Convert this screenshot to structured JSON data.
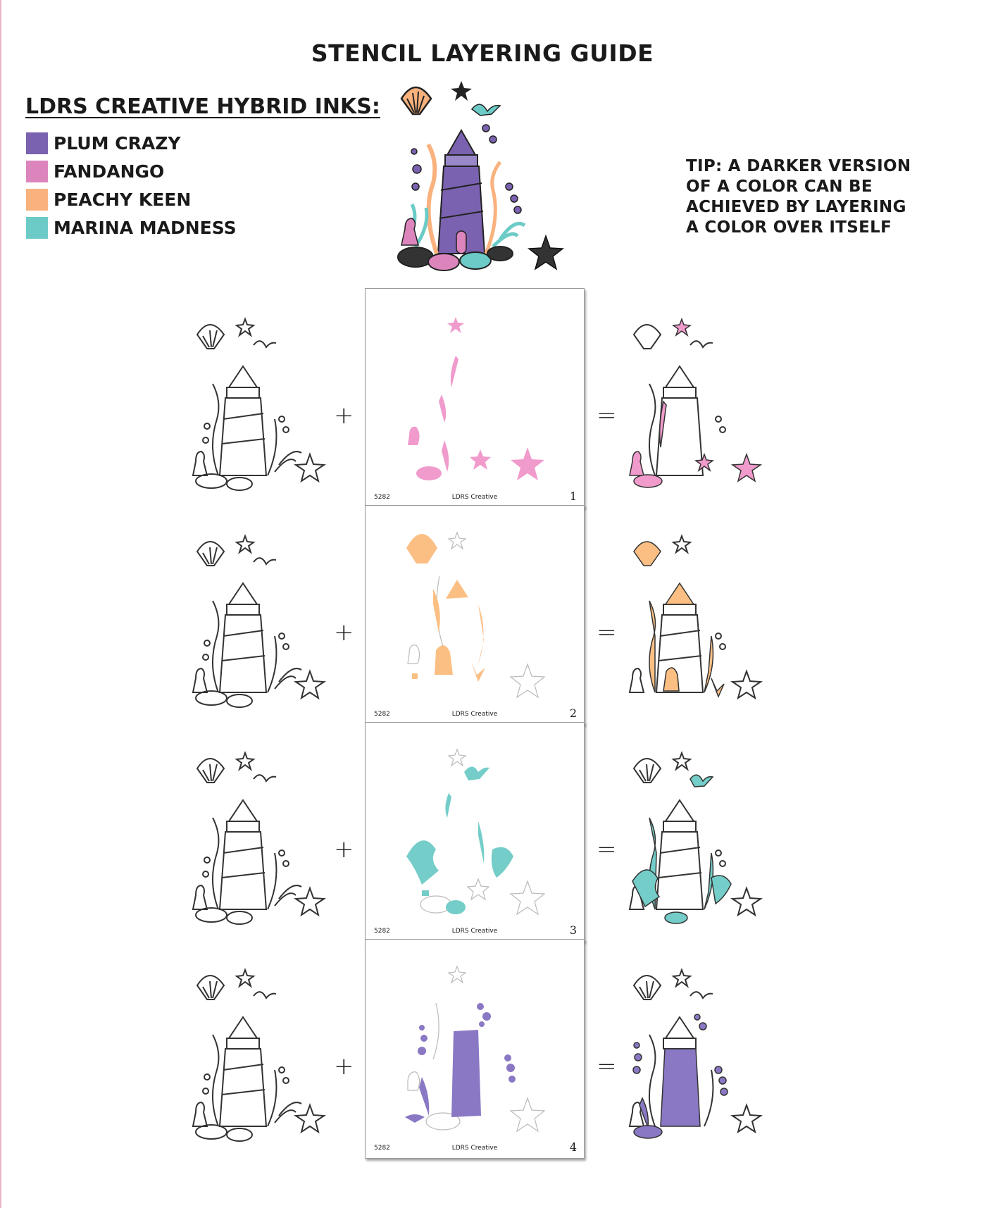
{
  "title": "STENCIL LAYERING GUIDE",
  "legend": {
    "heading": "LDRS CREATIVE HYBRID INKS:",
    "inks": [
      {
        "name": "PLUM CRAZY",
        "color": "#7b62b0"
      },
      {
        "name": "FANDANGO",
        "color": "#dc85bd"
      },
      {
        "name": "PEACHY KEEN",
        "color": "#f9b27e"
      },
      {
        "name": "MARINA MADNESS",
        "color": "#6ccbc7"
      }
    ]
  },
  "tip": {
    "lines": [
      "TIP: A DARKER VERSION",
      "OF A COLOR CAN BE",
      "ACHIEVED BY LAYERING",
      "A COLOR OVER ITSELF"
    ]
  },
  "steps": [
    {
      "plus": "+",
      "equals": "=",
      "stencil_id": "5282",
      "brand": "LDRS Creative",
      "number": "1",
      "ink": "FANDANGO",
      "color": "#f09bcc"
    },
    {
      "plus": "+",
      "equals": "=",
      "stencil_id": "5282",
      "brand": "LDRS Creative",
      "number": "2",
      "ink": "PEACHY KEEN",
      "color": "#fbbf84"
    },
    {
      "plus": "+",
      "equals": "=",
      "stencil_id": "5282",
      "brand": "LDRS Creative",
      "number": "3",
      "ink": "MARINA MADNESS",
      "color": "#74cdc8"
    },
    {
      "plus": "+",
      "equals": "=",
      "stencil_id": "5282",
      "brand": "LDRS Creative",
      "number": "4",
      "ink": "PLUM CRAZY",
      "color": "#8a78c4"
    }
  ]
}
